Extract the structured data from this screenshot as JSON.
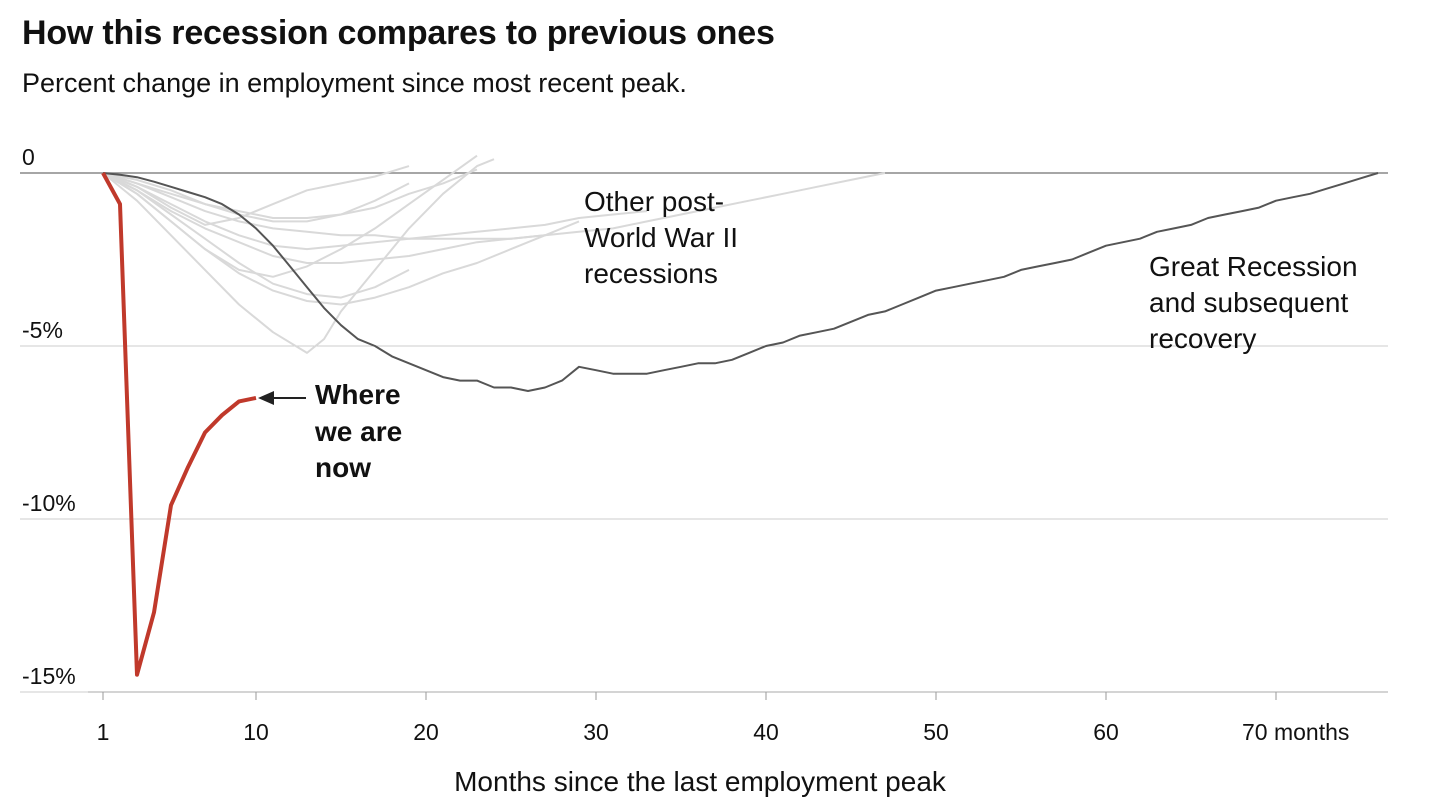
{
  "chart_data": {
    "type": "line",
    "title": "How this recession compares to previous ones",
    "subtitle": "Percent change in employment since most recent peak.",
    "xlabel": "Months since the last employment peak",
    "ylabel": "",
    "xlim": [
      1,
      76
    ],
    "ylim": [
      -15,
      0.5
    ],
    "x_ticks": [
      1,
      10,
      20,
      30,
      40,
      50,
      60,
      70
    ],
    "x_tick_labels": [
      "1",
      "10",
      "20",
      "30",
      "40",
      "50",
      "60",
      "70 months"
    ],
    "y_ticks": [
      0,
      -5,
      -10,
      -15
    ],
    "y_tick_labels": [
      "0",
      "-5%",
      "-10%",
      "-15%"
    ],
    "grid": "horizontal",
    "colors": {
      "current": "#c0392b",
      "great_recession": "#555555",
      "others": "#d9d9d9",
      "grid": "#cccccc"
    },
    "series": [
      {
        "role": "current",
        "x": [
          1,
          2,
          3,
          4,
          5,
          6,
          7,
          8,
          9,
          10
        ],
        "values": [
          0,
          -0.9,
          -14.5,
          -12.7,
          -9.6,
          -8.5,
          -7.5,
          -7.0,
          -6.6,
          -6.5
        ]
      },
      {
        "role": "great_recession",
        "x": [
          1,
          2,
          3,
          4,
          5,
          6,
          7,
          8,
          9,
          10,
          11,
          12,
          13,
          14,
          15,
          16,
          17,
          18,
          19,
          20,
          21,
          22,
          23,
          24,
          25,
          26,
          27,
          28,
          29,
          30,
          31,
          32,
          33,
          34,
          35,
          36,
          37,
          38,
          39,
          40,
          41,
          42,
          43,
          44,
          45,
          46,
          47,
          48,
          49,
          50,
          51,
          52,
          53,
          54,
          55,
          56,
          57,
          58,
          59,
          60,
          61,
          62,
          63,
          64,
          65,
          66,
          67,
          68,
          69,
          70,
          71,
          72,
          73,
          74,
          75,
          76
        ],
        "values": [
          0,
          -0.05,
          -0.12,
          -0.25,
          -0.4,
          -0.55,
          -0.7,
          -0.9,
          -1.2,
          -1.6,
          -2.1,
          -2.7,
          -3.3,
          -3.9,
          -4.4,
          -4.8,
          -5.0,
          -5.3,
          -5.5,
          -5.7,
          -5.9,
          -6.0,
          -6.0,
          -6.2,
          -6.2,
          -6.3,
          -6.2,
          -6.0,
          -5.6,
          -5.7,
          -5.8,
          -5.8,
          -5.8,
          -5.7,
          -5.6,
          -5.5,
          -5.5,
          -5.4,
          -5.2,
          -5.0,
          -4.9,
          -4.7,
          -4.6,
          -4.5,
          -4.3,
          -4.1,
          -4.0,
          -3.8,
          -3.6,
          -3.4,
          -3.3,
          -3.2,
          -3.1,
          -3.0,
          -2.8,
          -2.7,
          -2.6,
          -2.5,
          -2.3,
          -2.1,
          -2.0,
          -1.9,
          -1.7,
          -1.6,
          -1.5,
          -1.3,
          -1.2,
          -1.1,
          -1.0,
          -0.8,
          -0.7,
          -0.6,
          -0.45,
          -0.3,
          -0.15,
          0
        ]
      },
      {
        "role": "other",
        "x": [
          1,
          3,
          5,
          7,
          9,
          11,
          13,
          15,
          17,
          19
        ],
        "values": [
          0,
          -0.4,
          -1.0,
          -1.5,
          -1.3,
          -0.9,
          -0.5,
          -0.3,
          -0.1,
          0.2
        ]
      },
      {
        "role": "other",
        "x": [
          1,
          3,
          5,
          7,
          9,
          11,
          13,
          15,
          17,
          19,
          21,
          23
        ],
        "values": [
          0,
          -0.6,
          -1.4,
          -2.2,
          -2.8,
          -3.0,
          -2.7,
          -2.2,
          -1.6,
          -0.9,
          -0.2,
          0.5
        ]
      },
      {
        "role": "other",
        "x": [
          1,
          3,
          5,
          7,
          9,
          11,
          13,
          14,
          15,
          17,
          19,
          21,
          23,
          24
        ],
        "values": [
          0,
          -0.8,
          -1.8,
          -2.8,
          -3.8,
          -4.6,
          -5.2,
          -4.8,
          -4.0,
          -2.8,
          -1.6,
          -0.6,
          0.2,
          0.4
        ]
      },
      {
        "role": "other",
        "x": [
          1,
          3,
          5,
          7,
          9,
          11,
          13,
          15,
          17,
          19
        ],
        "values": [
          0,
          -0.5,
          -1.2,
          -1.9,
          -2.6,
          -3.2,
          -3.5,
          -3.6,
          -3.3,
          -2.8
        ]
      },
      {
        "role": "other",
        "x": [
          1,
          3,
          5,
          7,
          9,
          11,
          13,
          15,
          17,
          19,
          21,
          23,
          25,
          27,
          29,
          31,
          33
        ],
        "values": [
          0,
          -0.4,
          -0.9,
          -1.4,
          -1.8,
          -2.1,
          -2.2,
          -2.1,
          -2.0,
          -1.9,
          -1.8,
          -1.7,
          -1.6,
          -1.5,
          -1.3,
          -1.2,
          -1.1
        ]
      },
      {
        "role": "other",
        "x": [
          1,
          3,
          5,
          7,
          9,
          11,
          13,
          15,
          17,
          19,
          21,
          23,
          25,
          27,
          29,
          31,
          33,
          35,
          37,
          39,
          41,
          43,
          45,
          47
        ],
        "values": [
          0,
          -0.3,
          -0.7,
          -1.1,
          -1.4,
          -1.6,
          -1.7,
          -1.8,
          -1.8,
          -1.9,
          -1.9,
          -1.9,
          -1.9,
          -1.8,
          -1.7,
          -1.6,
          -1.4,
          -1.2,
          -1.0,
          -0.8,
          -0.6,
          -0.4,
          -0.2,
          0
        ]
      },
      {
        "role": "other",
        "x": [
          1,
          3,
          5,
          7,
          9,
          11,
          13,
          15,
          17,
          19,
          21,
          23
        ],
        "values": [
          0,
          -0.3,
          -0.6,
          -0.9,
          -1.1,
          -1.3,
          -1.3,
          -1.2,
          -1.0,
          -0.6,
          -0.3,
          0.1
        ]
      },
      {
        "role": "other",
        "x": [
          1,
          3,
          5,
          7,
          9,
          11,
          13,
          15,
          17,
          19,
          21,
          23,
          25,
          27,
          29
        ],
        "values": [
          0,
          -0.6,
          -1.4,
          -2.2,
          -2.9,
          -3.4,
          -3.7,
          -3.8,
          -3.6,
          -3.3,
          -2.9,
          -2.6,
          -2.2,
          -1.8,
          -1.4
        ]
      },
      {
        "role": "other",
        "x": [
          1,
          3,
          5,
          7,
          9,
          11,
          13,
          15,
          17,
          19,
          21,
          23,
          25,
          27
        ],
        "values": [
          0,
          -0.5,
          -1.1,
          -1.6,
          -2.0,
          -2.4,
          -2.6,
          -2.6,
          -2.5,
          -2.4,
          -2.2,
          -2.0,
          -1.9,
          -1.8
        ]
      },
      {
        "role": "other",
        "x": [
          1,
          3,
          5,
          7,
          9,
          11,
          13,
          15,
          17,
          19
        ],
        "values": [
          0,
          -0.2,
          -0.5,
          -0.9,
          -1.2,
          -1.4,
          -1.4,
          -1.2,
          -0.8,
          -0.3
        ]
      }
    ],
    "annotations": {
      "others": [
        "Other post-",
        "World War II",
        "recessions"
      ],
      "great_recession": [
        "Great Recession",
        "and subsequent",
        "recovery"
      ],
      "current": [
        "Where",
        "we are",
        "now"
      ]
    }
  }
}
